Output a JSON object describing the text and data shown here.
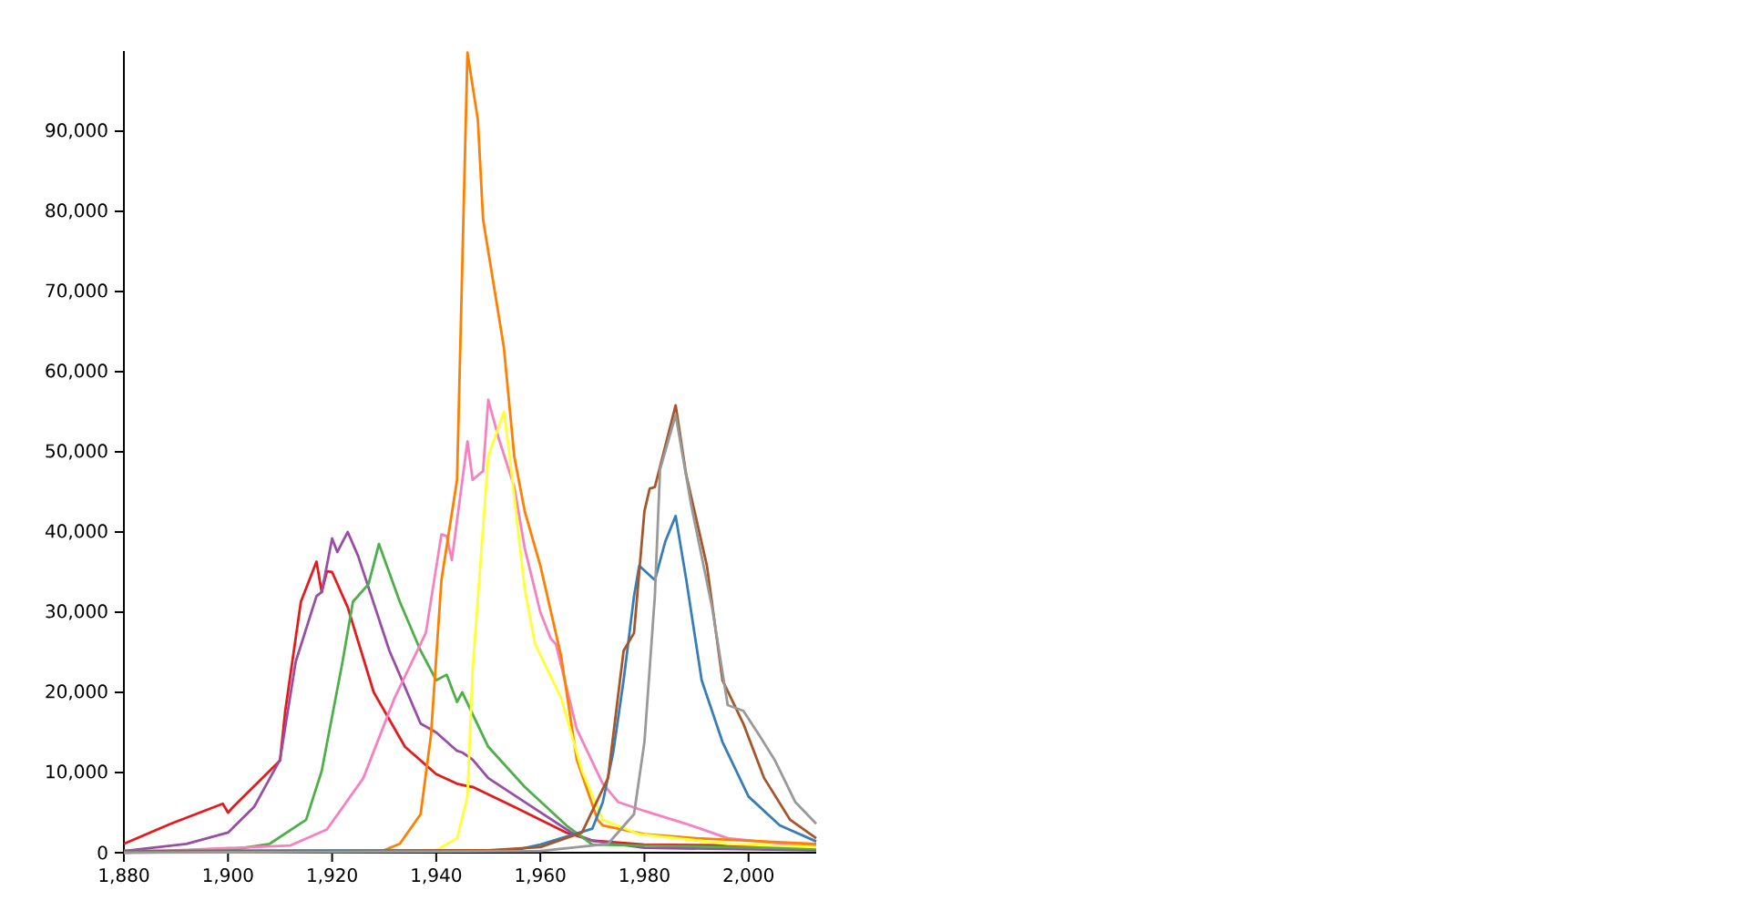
{
  "chart_data": {
    "type": "line",
    "xlim": [
      1880,
      2013
    ],
    "ylim": [
      0,
      100000
    ],
    "xticks": [
      {
        "value": 1880,
        "label": "1,880"
      },
      {
        "value": 1900,
        "label": "1,900"
      },
      {
        "value": 1920,
        "label": "1,920"
      },
      {
        "value": 1940,
        "label": "1,940"
      },
      {
        "value": 1960,
        "label": "1,960"
      },
      {
        "value": 1980,
        "label": "1,980"
      },
      {
        "value": 2000,
        "label": "2,000"
      }
    ],
    "yticks": [
      0,
      {
        "value": 10000,
        "label": "10,000"
      },
      {
        "value": 20000,
        "label": "20,000"
      },
      {
        "value": 30000,
        "label": "30,000"
      },
      {
        "value": 40000,
        "label": "40,000"
      },
      {
        "value": 50000,
        "label": "50,000"
      },
      {
        "value": 60000,
        "label": "60,000"
      },
      {
        "value": 70000,
        "label": "70,000"
      },
      {
        "value": 80000,
        "label": "80,000"
      },
      {
        "value": 90000,
        "label": "90,000"
      }
    ],
    "series": [
      {
        "color": "#e41a1c",
        "x": [
          1880,
          1889,
          1899,
          1900,
          1901,
          1910,
          1911,
          1914,
          1917,
          1918,
          1919,
          1920,
          1923,
          1928,
          1934,
          1940,
          1944,
          1946,
          1947,
          1955,
          1965,
          1970,
          1980,
          2013
        ],
        "values": [
          1100,
          3600,
          6100,
          5000,
          5700,
          11500,
          17700,
          31300,
          36300,
          32500,
          35100,
          35000,
          30600,
          20000,
          13200,
          9800,
          8600,
          8300,
          8200,
          5700,
          2500,
          1500,
          1000,
          800
        ]
      },
      {
        "color": "#984ea3",
        "x": [
          1880,
          1892,
          1900,
          1905,
          1910,
          1913,
          1917,
          1918,
          1920,
          1921,
          1923,
          1925,
          1931,
          1937,
          1940,
          1944,
          1945,
          1947,
          1950,
          1958,
          1966,
          1970,
          1980,
          2013
        ],
        "values": [
          200,
          1100,
          2500,
          5700,
          11600,
          23800,
          32000,
          32500,
          39200,
          37500,
          40000,
          37000,
          25200,
          16100,
          15000,
          12700,
          12500,
          11600,
          9300,
          5900,
          2500,
          1500,
          600,
          300
        ]
      },
      {
        "color": "#4daf4a",
        "x": [
          1880,
          1900,
          1908,
          1915,
          1918,
          1922,
          1924,
          1927,
          1929,
          1933,
          1937,
          1940,
          1942,
          1944,
          1945,
          1950,
          1957,
          1965,
          1970,
          2013
        ],
        "values": [
          0,
          300,
          1100,
          4100,
          10200,
          23800,
          31300,
          33500,
          38500,
          31300,
          25200,
          21500,
          22200,
          18800,
          20000,
          13200,
          8200,
          3400,
          1000,
          500
        ]
      },
      {
        "color": "#f781bf",
        "x": [
          1880,
          1912,
          1919,
          1926,
          1932,
          1938,
          1941,
          1942,
          1943,
          1946,
          1947,
          1949,
          1950,
          1952,
          1955,
          1957,
          1960,
          1962,
          1963,
          1967,
          1972,
          1975,
          1980,
          1988,
          1996,
          2013
        ],
        "values": [
          0,
          900,
          2900,
          9300,
          19300,
          27400,
          39700,
          39500,
          36500,
          51300,
          46500,
          47600,
          56500,
          51700,
          45600,
          38000,
          30000,
          26700,
          26000,
          15400,
          8600,
          6300,
          5200,
          3600,
          1800,
          700
        ]
      },
      {
        "color": "#ff7f00",
        "x": [
          1880,
          1930,
          1933,
          1937,
          1939,
          1941,
          1944,
          1946,
          1948,
          1949,
          1953,
          1955,
          1957,
          1960,
          1964,
          1967,
          1971,
          1972,
          1980,
          1990,
          2013
        ],
        "values": [
          200,
          300,
          1100,
          4800,
          14700,
          34000,
          46500,
          99800,
          91400,
          79000,
          63000,
          49400,
          42600,
          35800,
          24500,
          11600,
          4100,
          3400,
          2300,
          1800,
          1100
        ]
      },
      {
        "color": "#ffff33",
        "x": [
          1880,
          1940,
          1944,
          1946,
          1947,
          1950,
          1953,
          1954,
          1957,
          1959,
          1964,
          1968,
          1972,
          1979,
          1996,
          2013
        ],
        "values": [
          0,
          300,
          1800,
          7000,
          22900,
          49400,
          55000,
          50100,
          32900,
          26000,
          19300,
          10200,
          4100,
          2300,
          1100,
          700
        ]
      },
      {
        "color": "#377eb8",
        "x": [
          1880,
          1955,
          1960,
          1965,
          1970,
          1972,
          1974,
          1976,
          1978,
          1979,
          1982,
          1984,
          1986,
          1988,
          1991,
          1995,
          2000,
          2006,
          2013
        ],
        "values": [
          200,
          300,
          1000,
          2000,
          3000,
          6300,
          12500,
          21500,
          32000,
          35800,
          34000,
          38800,
          42000,
          34200,
          21500,
          13800,
          7000,
          3400,
          1400
        ]
      },
      {
        "color": "#a65628",
        "x": [
          1880,
          1950,
          1960,
          1968,
          1973,
          1976,
          1978,
          1980,
          1981,
          1982,
          1986,
          1988,
          1992,
          1995,
          1999,
          2003,
          2008,
          2013
        ],
        "values": [
          0,
          300,
          700,
          2500,
          9300,
          25200,
          27400,
          42600,
          45400,
          45600,
          55800,
          47200,
          35800,
          21500,
          16100,
          9300,
          4100,
          1800
        ]
      },
      {
        "color": "#999999",
        "x": [
          1880,
          1960,
          1973,
          1978,
          1980,
          1982,
          1983,
          1986,
          1989,
          1993,
          1996,
          1999,
          2002,
          2005,
          2009,
          2013
        ],
        "values": [
          0,
          200,
          1100,
          4800,
          13800,
          32000,
          47800,
          54600,
          43300,
          30600,
          18400,
          17700,
          14700,
          11600,
          6300,
          3600
        ]
      }
    ]
  }
}
